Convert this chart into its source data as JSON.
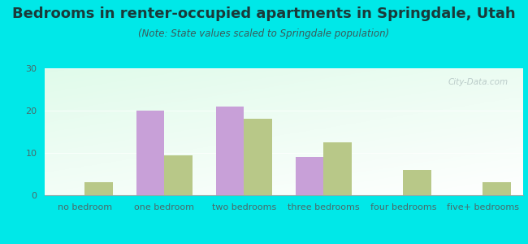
{
  "title": "Bedrooms in renter-occupied apartments in Springdale, Utah",
  "subtitle": "(Note: State values scaled to Springdale population)",
  "categories": [
    "no bedroom",
    "one bedroom",
    "two bedrooms",
    "three bedrooms",
    "four bedrooms",
    "five+ bedrooms"
  ],
  "springdale_values": [
    0,
    20,
    21,
    9,
    0,
    0
  ],
  "utah_values": [
    3,
    9.5,
    18,
    12.5,
    6,
    3
  ],
  "springdale_color": "#c8a0d8",
  "utah_color": "#b8c888",
  "background_outer": "#00e8e8",
  "plot_bg_top": "#e8f4f0",
  "plot_bg_bottom": "#b8e8c8",
  "ylim": [
    0,
    30
  ],
  "yticks": [
    0,
    10,
    20,
    30
  ],
  "bar_width": 0.35,
  "title_fontsize": 13,
  "subtitle_fontsize": 8.5,
  "tick_fontsize": 8,
  "legend_fontsize": 9,
  "title_color": "#1a3a3a",
  "subtitle_color": "#3a5a5a",
  "tick_color": "#4a6a6a"
}
